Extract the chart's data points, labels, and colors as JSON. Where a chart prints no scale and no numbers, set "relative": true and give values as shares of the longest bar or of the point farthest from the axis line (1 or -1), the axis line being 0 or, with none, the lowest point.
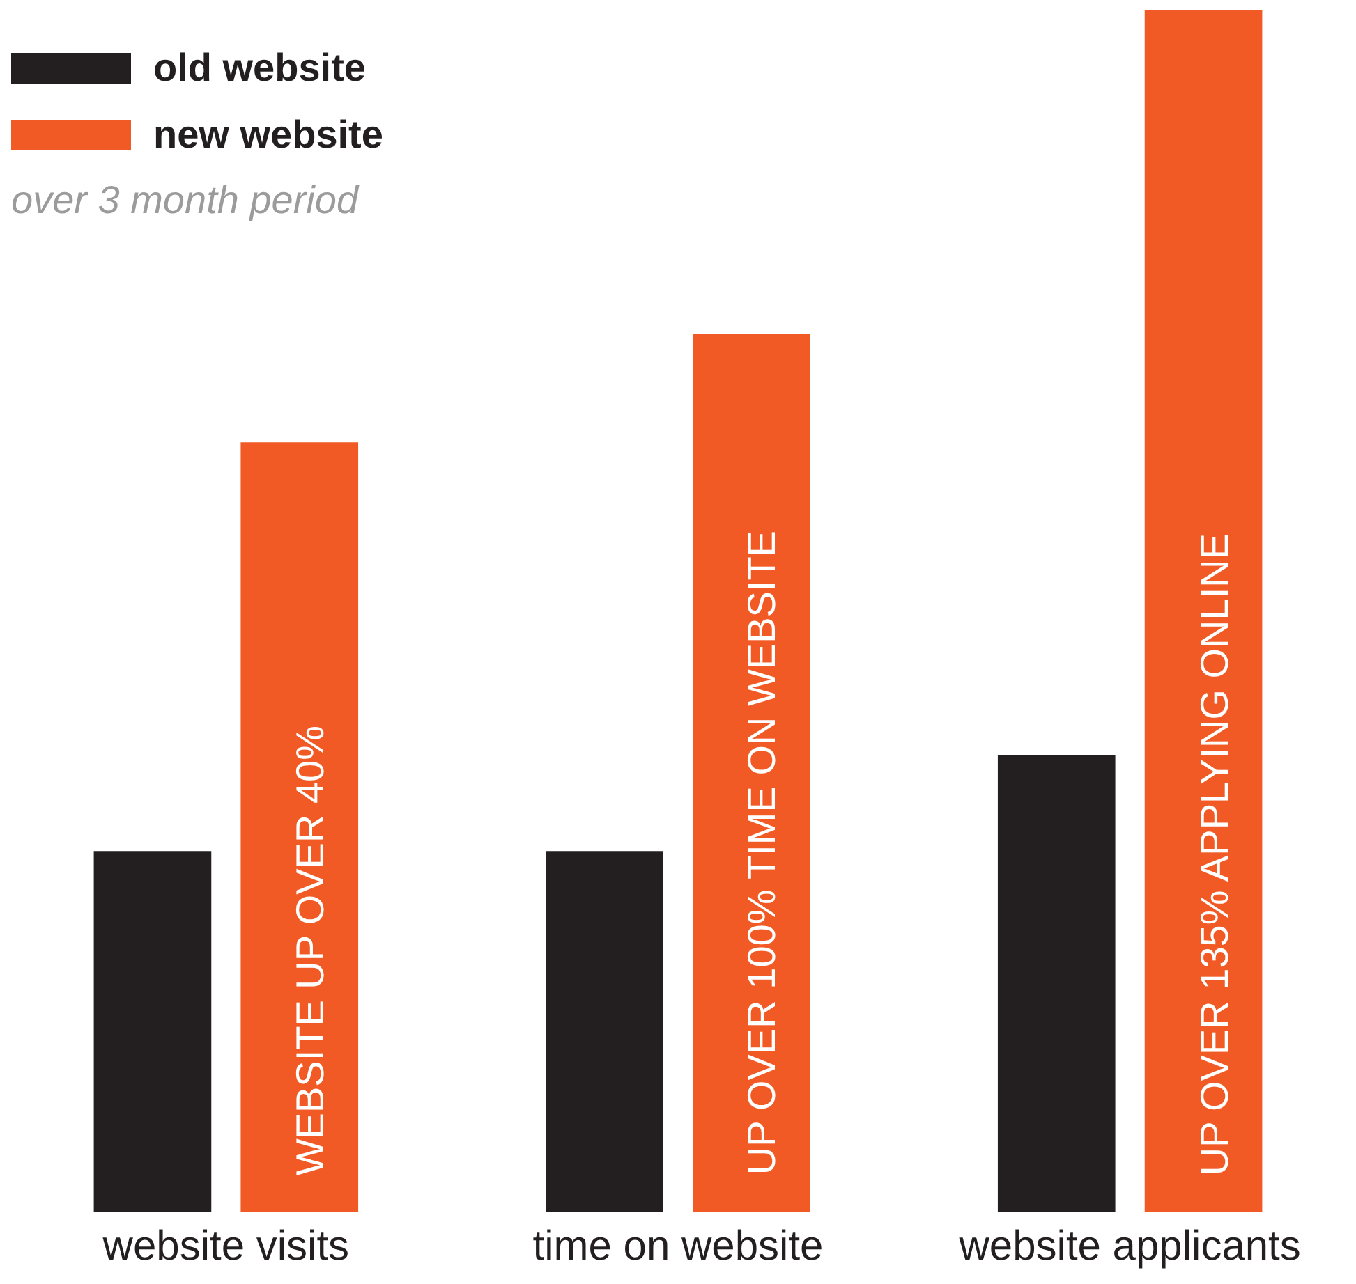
{
  "chart_data": {
    "type": "bar",
    "relative": true,
    "subtitle": "over 3 month period",
    "legend": "top left",
    "grid": false,
    "categories": [
      "website visits",
      "time on website",
      "website applicants"
    ],
    "series": [
      {
        "name": "old website",
        "color": "#231f20",
        "values": [
          0.3,
          0.3,
          0.38
        ]
      },
      {
        "name": "new website",
        "color": "#f15a24",
        "values": [
          0.64,
          0.73,
          1
        ]
      }
    ],
    "annotations": [
      "WEBSITE UP OVER 40%",
      "UP OVER 100% TIME ON WEBSITE",
      "UP OVER 135% APPLYING ONLINE"
    ]
  }
}
